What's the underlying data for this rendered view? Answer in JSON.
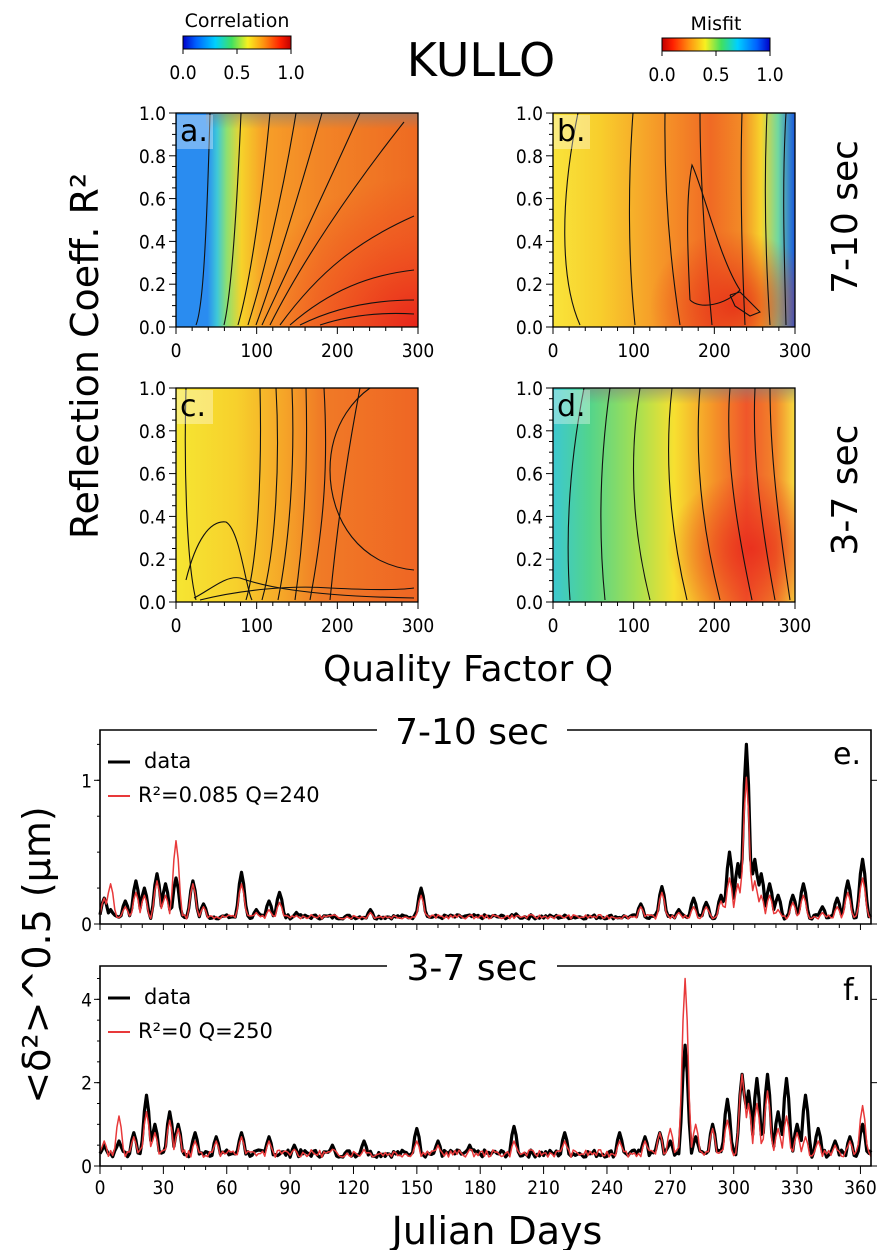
{
  "title": "KULLO",
  "colorbars": {
    "correlation": {
      "label": "Correlation",
      "ticks": [
        "0.0",
        "0.5",
        "1.0"
      ],
      "colormap": "jet"
    },
    "misfit": {
      "label": "Misfit",
      "ticks": [
        "0.0",
        "0.5",
        "1.0"
      ],
      "colormap": "jet_reversed"
    }
  },
  "grid_axes": {
    "ylabel": "Reflection Coeff. R²",
    "xlabel": "Quality Factor Q",
    "x_ticks": [
      "0",
      "100",
      "200",
      "300"
    ],
    "y_ticks": [
      "0.0",
      "0.2",
      "0.4",
      "0.6",
      "0.8",
      "1.0"
    ],
    "xlim": [
      0,
      300
    ],
    "ylim": [
      0.0,
      1.0
    ]
  },
  "row_labels": [
    "7-10 sec",
    "3-7 sec"
  ],
  "timeseries_axes": {
    "ylabel": "<δ²>^0.5 (μm)",
    "xlabel": "Julian Days",
    "x_ticks": [
      "0",
      "30",
      "60",
      "90",
      "120",
      "150",
      "180",
      "210",
      "240",
      "270",
      "300",
      "330",
      "360"
    ],
    "xlim": [
      0,
      365
    ]
  },
  "chart_data": [
    {
      "type": "heatmap",
      "panel": "a.",
      "band": "7-10 sec",
      "metric": "Correlation",
      "x_range": [
        0,
        300
      ],
      "y_range": [
        0.0,
        1.0
      ],
      "description_points": [
        {
          "q": 20,
          "r2": 0.5,
          "value": 0.1
        },
        {
          "q": 60,
          "r2": 0.5,
          "value": 0.5
        },
        {
          "q": 100,
          "r2": 0.5,
          "value": 0.75
        },
        {
          "q": 200,
          "r2": 0.6,
          "value": 0.85
        },
        {
          "q": 250,
          "r2": 0.1,
          "value": 0.95
        }
      ]
    },
    {
      "type": "heatmap",
      "panel": "b.",
      "band": "7-10 sec",
      "metric": "Misfit",
      "x_range": [
        0,
        300
      ],
      "y_range": [
        0.0,
        1.0
      ],
      "minimum": {
        "q": 240,
        "r2": 0.1
      }
    },
    {
      "type": "heatmap",
      "panel": "c.",
      "band": "3-7 sec",
      "metric": "Correlation",
      "x_range": [
        0,
        300
      ],
      "y_range": [
        0.0,
        1.0
      ],
      "maximum": {
        "q": 250,
        "r2": 0.3
      }
    },
    {
      "type": "heatmap",
      "panel": "d.",
      "band": "3-7 sec",
      "metric": "Misfit",
      "x_range": [
        0,
        300
      ],
      "y_range": [
        0.0,
        1.0
      ],
      "minimum": {
        "q": 250,
        "r2": 0.1
      }
    },
    {
      "type": "line",
      "panel": "e.",
      "title": "7-10 sec",
      "xlim": [
        0,
        365
      ],
      "ylim": [
        0,
        1.35
      ],
      "y_ticks": [
        "0",
        "1"
      ],
      "legend_position": "top-left",
      "series": [
        {
          "name": "data",
          "color": "#000000"
        },
        {
          "name": "R²=0.085 Q=240",
          "color": "#e8393a"
        }
      ],
      "baseline": 0.05,
      "peaks": [
        {
          "x": 2,
          "data": 0.18,
          "model": 0.18
        },
        {
          "x": 5,
          "data": 0.1,
          "model": 0.28
        },
        {
          "x": 12,
          "data": 0.16,
          "model": 0.12
        },
        {
          "x": 17,
          "data": 0.3,
          "model": 0.22
        },
        {
          "x": 21,
          "data": 0.25,
          "model": 0.2
        },
        {
          "x": 27,
          "data": 0.35,
          "model": 0.3
        },
        {
          "x": 31,
          "data": 0.28,
          "model": 0.2
        },
        {
          "x": 36,
          "data": 0.32,
          "model": 0.58
        },
        {
          "x": 44,
          "data": 0.3,
          "model": 0.28
        },
        {
          "x": 49,
          "data": 0.14,
          "model": 0.12
        },
        {
          "x": 67,
          "data": 0.36,
          "model": 0.28
        },
        {
          "x": 74,
          "data": 0.1,
          "model": 0.08
        },
        {
          "x": 80,
          "data": 0.16,
          "model": 0.1
        },
        {
          "x": 85,
          "data": 0.22,
          "model": 0.15
        },
        {
          "x": 93,
          "data": 0.08,
          "model": 0.06
        },
        {
          "x": 128,
          "data": 0.1,
          "model": 0.08
        },
        {
          "x": 152,
          "data": 0.25,
          "model": 0.2
        },
        {
          "x": 187,
          "data": 0.06,
          "model": 0.05
        },
        {
          "x": 197,
          "data": 0.07,
          "model": 0.05
        },
        {
          "x": 256,
          "data": 0.14,
          "model": 0.12
        },
        {
          "x": 266,
          "data": 0.26,
          "model": 0.22
        },
        {
          "x": 274,
          "data": 0.1,
          "model": 0.08
        },
        {
          "x": 281,
          "data": 0.18,
          "model": 0.12
        },
        {
          "x": 287,
          "data": 0.15,
          "model": 0.12
        },
        {
          "x": 294,
          "data": 0.2,
          "model": 0.16
        },
        {
          "x": 298,
          "data": 0.5,
          "model": 0.32
        },
        {
          "x": 302,
          "data": 0.42,
          "model": 0.28
        },
        {
          "x": 306,
          "data": 1.25,
          "model": 1.02
        },
        {
          "x": 310,
          "data": 0.45,
          "model": 0.3
        },
        {
          "x": 313,
          "data": 0.35,
          "model": 0.2
        },
        {
          "x": 317,
          "data": 0.28,
          "model": 0.2
        },
        {
          "x": 321,
          "data": 0.2,
          "model": 0.1
        },
        {
          "x": 328,
          "data": 0.2,
          "model": 0.15
        },
        {
          "x": 333,
          "data": 0.28,
          "model": 0.2
        },
        {
          "x": 342,
          "data": 0.12,
          "model": 0.08
        },
        {
          "x": 349,
          "data": 0.18,
          "model": 0.12
        },
        {
          "x": 354,
          "data": 0.3,
          "model": 0.22
        },
        {
          "x": 361,
          "data": 0.45,
          "model": 0.32
        }
      ]
    },
    {
      "type": "line",
      "panel": "f.",
      "title": "3-7 sec",
      "xlim": [
        0,
        365
      ],
      "ylim": [
        0,
        4.8
      ],
      "y_ticks": [
        "0",
        "2",
        "4"
      ],
      "legend_position": "top-left",
      "series": [
        {
          "name": "data",
          "color": "#000000"
        },
        {
          "name": "R²=0 Q=250",
          "color": "#e8393a"
        }
      ],
      "baseline": 0.3,
      "peaks": [
        {
          "x": 2,
          "data": 0.5,
          "model": 0.6
        },
        {
          "x": 9,
          "data": 0.6,
          "model": 1.2
        },
        {
          "x": 16,
          "data": 0.8,
          "model": 0.7
        },
        {
          "x": 22,
          "data": 1.7,
          "model": 1.3
        },
        {
          "x": 26,
          "data": 1.0,
          "model": 0.8
        },
        {
          "x": 33,
          "data": 1.3,
          "model": 1.1
        },
        {
          "x": 37,
          "data": 1.0,
          "model": 0.9
        },
        {
          "x": 45,
          "data": 0.8,
          "model": 0.6
        },
        {
          "x": 55,
          "data": 0.7,
          "model": 0.6
        },
        {
          "x": 67,
          "data": 0.8,
          "model": 0.7
        },
        {
          "x": 80,
          "data": 0.7,
          "model": 0.6
        },
        {
          "x": 92,
          "data": 0.5,
          "model": 0.4
        },
        {
          "x": 110,
          "data": 0.5,
          "model": 0.4
        },
        {
          "x": 125,
          "data": 0.6,
          "model": 0.4
        },
        {
          "x": 150,
          "data": 0.9,
          "model": 0.6
        },
        {
          "x": 160,
          "data": 0.6,
          "model": 0.5
        },
        {
          "x": 175,
          "data": 0.5,
          "model": 0.4
        },
        {
          "x": 196,
          "data": 0.95,
          "model": 0.6
        },
        {
          "x": 220,
          "data": 0.8,
          "model": 0.6
        },
        {
          "x": 246,
          "data": 0.8,
          "model": 0.6
        },
        {
          "x": 258,
          "data": 0.7,
          "model": 0.6
        },
        {
          "x": 265,
          "data": 0.8,
          "model": 0.8
        },
        {
          "x": 270,
          "data": 0.6,
          "model": 0.9
        },
        {
          "x": 277,
          "data": 2.9,
          "model": 4.5
        },
        {
          "x": 282,
          "data": 0.7,
          "model": 1.0
        },
        {
          "x": 290,
          "data": 1.0,
          "model": 0.9
        },
        {
          "x": 297,
          "data": 1.6,
          "model": 1.1
        },
        {
          "x": 304,
          "data": 2.2,
          "model": 2.2
        },
        {
          "x": 307,
          "data": 1.8,
          "model": 1.5
        },
        {
          "x": 311,
          "data": 2.1,
          "model": 1.5
        },
        {
          "x": 316,
          "data": 2.2,
          "model": 1.8
        },
        {
          "x": 321,
          "data": 1.3,
          "model": 0.9
        },
        {
          "x": 325,
          "data": 2.1,
          "model": 1.2
        },
        {
          "x": 330,
          "data": 1.0,
          "model": 0.8
        },
        {
          "x": 334,
          "data": 1.7,
          "model": 0.7
        },
        {
          "x": 340,
          "data": 0.9,
          "model": 0.6
        },
        {
          "x": 348,
          "data": 0.6,
          "model": 0.5
        },
        {
          "x": 355,
          "data": 0.7,
          "model": 0.6
        },
        {
          "x": 361,
          "data": 1.0,
          "model": 1.45
        }
      ]
    }
  ]
}
